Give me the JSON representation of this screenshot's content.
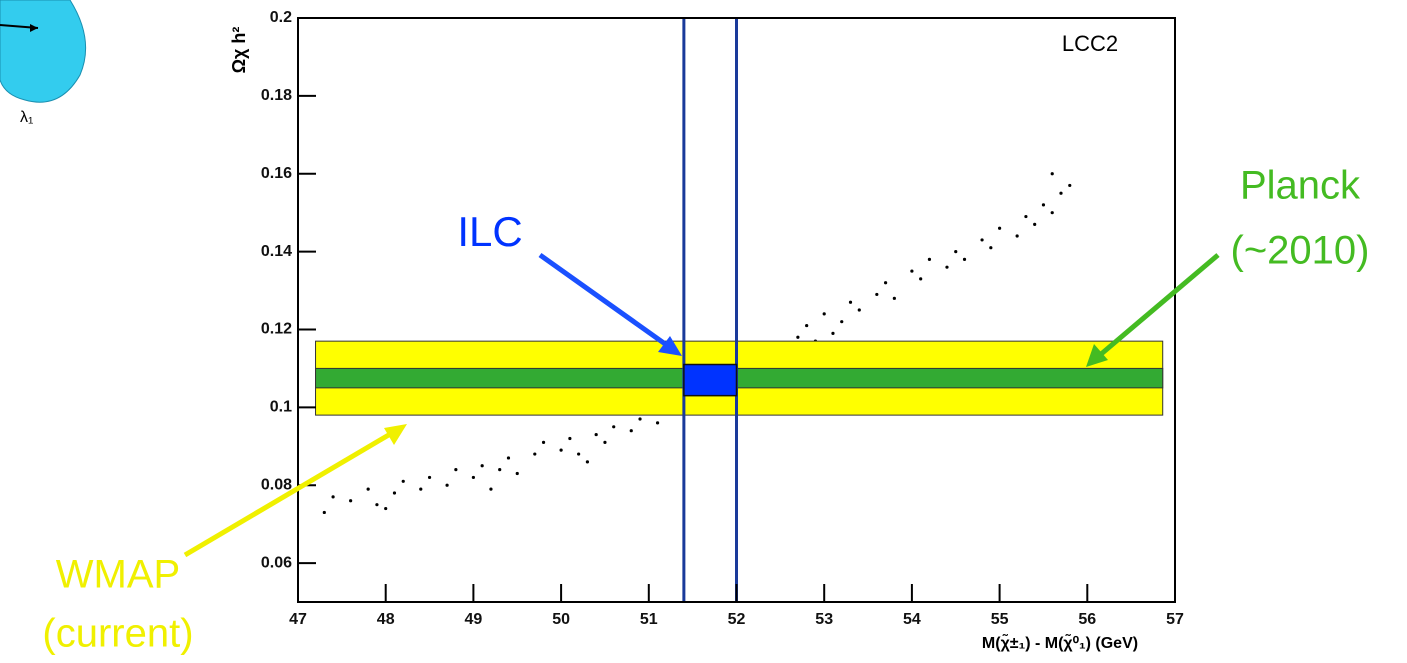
{
  "chart_data": {
    "type": "scatter",
    "inset": {
      "label": "λ₁"
    },
    "ylabel": "Ωχ h²",
    "xlabel": "M(χ̃±₁) - M(χ̃⁰₁) (GeV)",
    "label": "LCC2",
    "color": "#000000",
    "xlim": [
      47,
      57
    ],
    "ylim": [
      0.05,
      0.2
    ],
    "xticks": [
      47,
      48,
      49,
      50,
      51,
      52,
      53,
      54,
      55,
      56,
      57
    ],
    "yticks": [
      0.06,
      0.08,
      0.1,
      0.12,
      0.14,
      0.16,
      0.18,
      0.2
    ],
    "x": [
      47.3,
      47.4,
      47.6,
      47.8,
      47.9,
      48.1,
      48.2,
      48.4,
      48.5,
      48.7,
      48.8,
      49.0,
      49.1,
      49.3,
      49.4,
      49.5,
      49.7,
      49.8,
      50.0,
      50.1,
      50.2,
      50.4,
      50.5,
      50.6,
      50.8,
      50.9,
      51.0,
      51.1,
      51.2,
      51.4,
      51.5,
      51.6,
      51.8,
      51.9,
      52.0,
      52.1,
      52.3,
      52.4,
      52.5,
      52.7,
      52.8,
      52.9,
      53.0,
      53.2,
      53.3,
      53.4,
      53.6,
      53.7,
      53.8,
      54.0,
      54.1,
      54.2,
      54.4,
      54.5,
      54.6,
      54.8,
      54.9,
      55.0,
      55.2,
      55.3,
      55.4,
      55.5,
      55.6,
      55.7,
      55.8,
      55.6,
      53.1,
      50.3,
      48.0,
      49.2
    ],
    "y": [
      0.073,
      0.077,
      0.076,
      0.079,
      0.075,
      0.078,
      0.081,
      0.079,
      0.082,
      0.08,
      0.084,
      0.082,
      0.085,
      0.084,
      0.087,
      0.083,
      0.088,
      0.091,
      0.089,
      0.092,
      0.088,
      0.093,
      0.091,
      0.095,
      0.094,
      0.097,
      0.099,
      0.096,
      0.101,
      0.1,
      0.104,
      0.102,
      0.107,
      0.109,
      0.106,
      0.112,
      0.11,
      0.115,
      0.113,
      0.118,
      0.121,
      0.117,
      0.124,
      0.122,
      0.127,
      0.125,
      0.129,
      0.132,
      0.128,
      0.135,
      0.133,
      0.138,
      0.136,
      0.14,
      0.138,
      0.143,
      0.141,
      0.146,
      0.144,
      0.149,
      0.147,
      0.152,
      0.15,
      0.155,
      0.157,
      0.16,
      0.119,
      0.086,
      0.074,
      0.079
    ],
    "bands": [
      {
        "label": "WMAP",
        "sublabel": "(current)",
        "color": "#ffff00",
        "xlim": [
          47.2,
          56.86
        ],
        "ylim": [
          0.098,
          0.117
        ]
      },
      {
        "label": "Planck",
        "sublabel": "(~2010)",
        "color": "#33aa33",
        "xlim": [
          47.2,
          56.86
        ],
        "ylim": [
          0.105,
          0.11
        ]
      }
    ],
    "ilc": {
      "label": "ILC",
      "color": "#0033ff",
      "xlim": [
        51.4,
        52.0
      ],
      "ylim": [
        0.103,
        0.111
      ],
      "line_color": "#1a3a9a"
    }
  }
}
